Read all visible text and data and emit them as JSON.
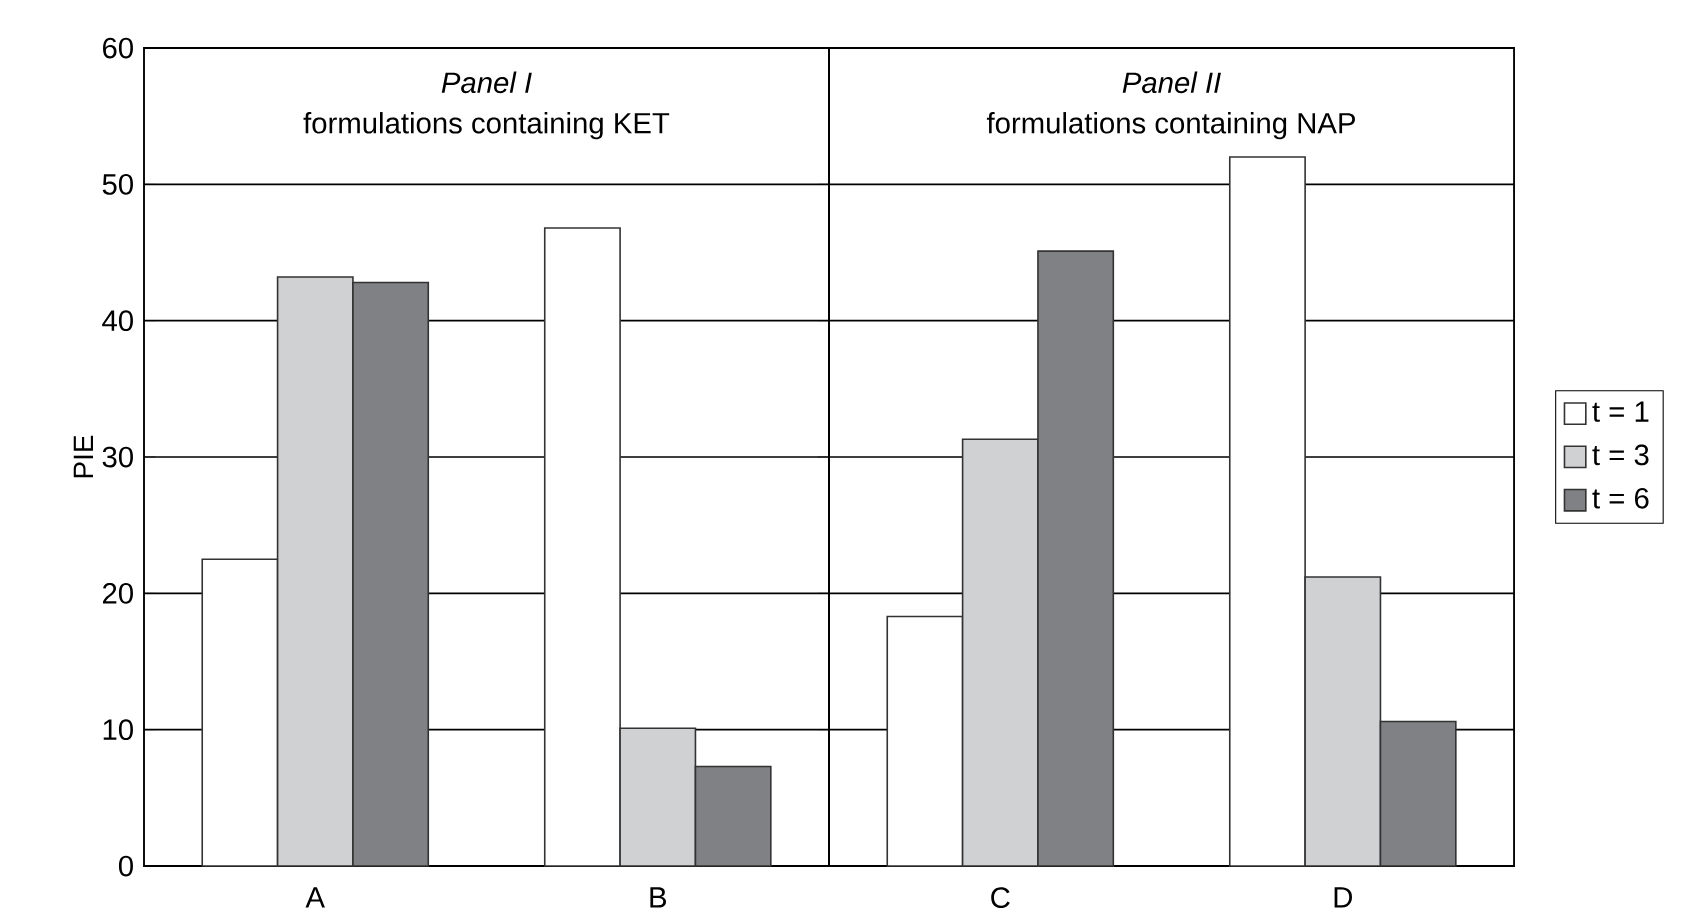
{
  "chart_data": [
    {
      "type": "bar",
      "ylabel": "PIE",
      "categories": [
        "A",
        "B"
      ],
      "series": [
        {
          "color": "#ffffff",
          "values": [
            22.5,
            46.8
          ]
        },
        {
          "color": "#d0d1d3",
          "values": [
            43.2,
            10.1
          ]
        },
        {
          "color": "#808185",
          "values": [
            42.8,
            7.3
          ]
        }
      ],
      "ylim": [
        0,
        60
      ],
      "yticks": [
        0,
        10,
        20,
        30,
        40,
        50,
        60
      ],
      "grid": "y",
      "annotations": [
        "Panel I",
        "formulations containing KET"
      ]
    },
    {
      "type": "bar",
      "categories": [
        "C",
        "D"
      ],
      "series": [
        {
          "name": "t = 1",
          "color": "#ffffff",
          "values": [
            18.3,
            52.0
          ]
        },
        {
          "name": "t = 3",
          "color": "#d0d1d3",
          "values": [
            31.3,
            21.2
          ]
        },
        {
          "name": "t = 6",
          "color": "#808185",
          "values": [
            45.1,
            10.6
          ]
        }
      ],
      "ylim": [
        0,
        60
      ],
      "yticks": [
        0,
        10,
        20,
        30,
        40,
        50,
        60
      ],
      "grid": "y",
      "tick_labels": "x",
      "legend": "right",
      "annotations": [
        "Panel II",
        "formulations containing NAP"
      ]
    }
  ]
}
